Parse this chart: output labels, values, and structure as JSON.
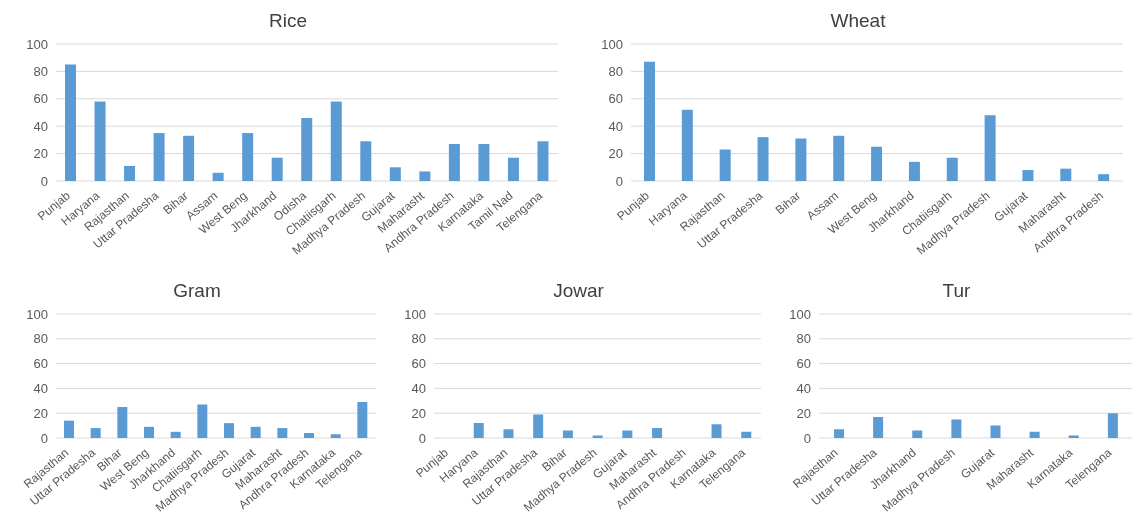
{
  "chart_data": [
    {
      "type": "bar",
      "title": "Rice",
      "categories": [
        "Punjab",
        "Haryana",
        "Rajasthan",
        "Uttar Pradesha",
        "Bihar",
        "Assam",
        "West Beng",
        "Jharkhand",
        "Odisha",
        "Chatiisgarh",
        "Madhya Pradesh",
        "Gujarat",
        "Maharasht",
        "Andhra Pradesh",
        "Karnataka",
        "Tamil Nad",
        "Telengana"
      ],
      "values": [
        85,
        58,
        11,
        35,
        33,
        6,
        35,
        17,
        46,
        58,
        29,
        10,
        7,
        27,
        27,
        17,
        29
      ],
      "color": "#5b9bd5",
      "ylim": [
        0,
        100
      ],
      "yticks": [
        0,
        20,
        40,
        60,
        80,
        100
      ],
      "grid": "y"
    },
    {
      "type": "bar",
      "title": "Wheat",
      "categories": [
        "Punjab",
        "Haryana",
        "Rajasthan",
        "Uttar Pradesha",
        "Bihar",
        "Assam",
        "West Beng",
        "Jharkhand",
        "Chatiisgarh",
        "Madhya Pradesh",
        "Gujarat",
        "Maharasht",
        "Andhra Pradesh"
      ],
      "values": [
        87,
        52,
        23,
        32,
        31,
        33,
        25,
        14,
        17,
        48,
        8,
        9,
        5
      ],
      "color": "#5b9bd5",
      "ylim": [
        0,
        100
      ],
      "yticks": [
        0,
        20,
        40,
        60,
        80,
        100
      ],
      "grid": "y"
    },
    {
      "type": "bar",
      "title": "Gram",
      "categories": [
        "Rajasthan",
        "Uttar Pradesha",
        "Bihar",
        "West Beng",
        "Jharkhand",
        "Chatiisgarh",
        "Madhya Pradesh",
        "Gujarat",
        "Maharasht",
        "Andhra Pradesh",
        "Karnataka",
        "Telengana"
      ],
      "values": [
        14,
        8,
        25,
        9,
        5,
        27,
        12,
        9,
        8,
        4,
        3,
        29
      ],
      "color": "#5b9bd5",
      "ylim": [
        0,
        100
      ],
      "yticks": [
        0,
        20,
        40,
        60,
        80,
        100
      ],
      "grid": "y"
    },
    {
      "type": "bar",
      "title": "Jowar",
      "categories": [
        "Punjab",
        "Haryana",
        "Rajasthan",
        "Uttar Pradesha",
        "Bihar",
        "Madhya Pradesh",
        "Gujarat",
        "Maharasht",
        "Andhra Pradesh",
        "Karnataka",
        "Telengana"
      ],
      "values": [
        0,
        12,
        7,
        19,
        6,
        2,
        6,
        8,
        0,
        11,
        5
      ],
      "color": "#5b9bd5",
      "ylim": [
        0,
        100
      ],
      "yticks": [
        0,
        20,
        40,
        60,
        80,
        100
      ],
      "grid": "y"
    },
    {
      "type": "bar",
      "title": "Tur",
      "categories": [
        "Rajasthan",
        "Uttar Pradesha",
        "Jharkhand",
        "Madhya Pradesh",
        "Gujarat",
        "Maharasht",
        "Karnataka",
        "Telengana"
      ],
      "values": [
        7,
        17,
        6,
        15,
        10,
        5,
        2,
        20
      ],
      "color": "#5b9bd5",
      "ylim": [
        0,
        100
      ],
      "yticks": [
        0,
        20,
        40,
        60,
        80,
        100
      ],
      "grid": "y"
    }
  ]
}
